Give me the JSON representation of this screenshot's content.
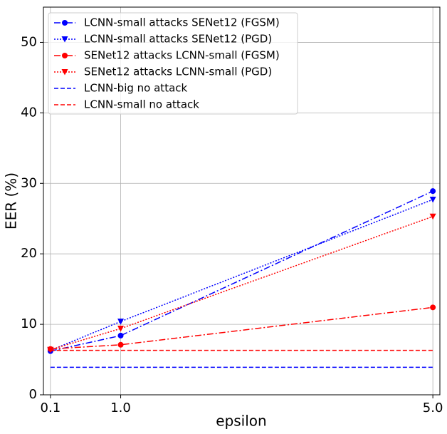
{
  "chart_data": {
    "type": "line",
    "x_label": "epsilon",
    "y_label": "EER (%)",
    "xlim": [
      0.01,
      5.09
    ],
    "ylim": [
      0,
      55
    ],
    "xticks": [
      0.1,
      {
        "value": 1.0,
        "label": "1.0"
      },
      {
        "value": 5.0,
        "label": "5.0"
      }
    ],
    "yticks": [
      0,
      10,
      20,
      30,
      40,
      50
    ],
    "grid": true,
    "legend": "upper left",
    "series": [
      {
        "name": "LCNN-small attacks SENet12 (FGSM)",
        "color": "#0000ff",
        "linestyle": "dashdot",
        "marker": "o",
        "x": [
          0.1,
          1.0,
          5.0
        ],
        "values": [
          6.2,
          8.4,
          28.9
        ]
      },
      {
        "name": "LCNN-small attacks SENet12 (PGD)",
        "color": "#0000ff",
        "linestyle": "dotted",
        "marker": "v",
        "x": [
          0.1,
          1.0,
          5.0
        ],
        "values": [
          6.3,
          10.4,
          27.7
        ]
      },
      {
        "name": "SENet12 attacks LCNN-small (FGSM)",
        "color": "#ff0000",
        "linestyle": "dashdot",
        "marker": "o",
        "x": [
          0.1,
          1.0,
          5.0
        ],
        "values": [
          6.5,
          7.1,
          12.4
        ]
      },
      {
        "name": "SENet12 attacks LCNN-small (PGD)",
        "color": "#ff0000",
        "linestyle": "dotted",
        "marker": "v",
        "x": [
          0.1,
          1.0,
          5.0
        ],
        "values": [
          6.4,
          9.4,
          25.3
        ]
      },
      {
        "name": "LCNN-big no attack",
        "color": "#0000ff",
        "linestyle": "dashed",
        "marker": "none",
        "x": [
          0.1,
          5.0
        ],
        "values": [
          3.9,
          3.9
        ]
      },
      {
        "name": "LCNN-small no attack",
        "color": "#ff0000",
        "linestyle": "dashed",
        "marker": "none",
        "x": [
          0.1,
          5.0
        ],
        "values": [
          6.3,
          6.3
        ]
      }
    ]
  }
}
